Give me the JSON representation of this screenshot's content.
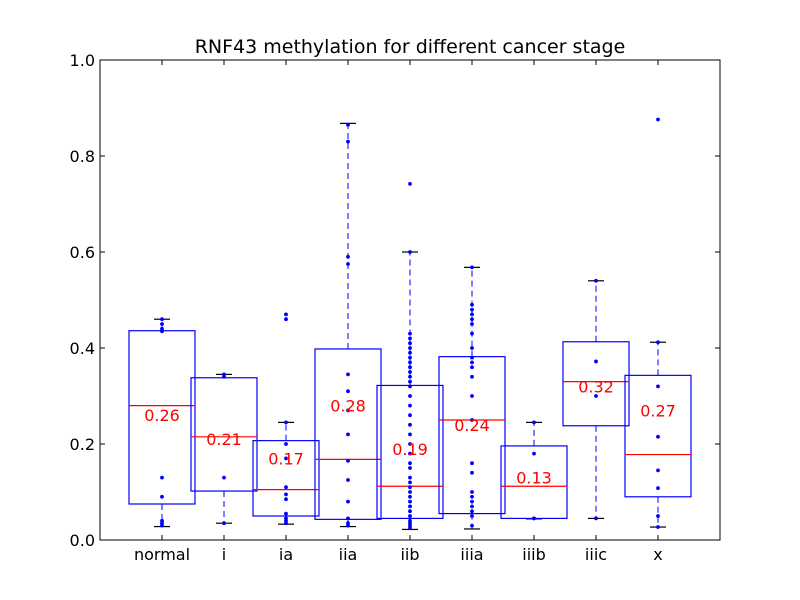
{
  "chart_data": {
    "type": "box",
    "title": "RNF43 methylation for different cancer stage",
    "xlabel": "",
    "ylabel": "",
    "ylim": [
      0,
      1.0
    ],
    "yticks": [
      "0.0",
      "0.2",
      "0.4",
      "0.6",
      "0.8",
      "1.0"
    ],
    "grid": false,
    "colors": {
      "box": "#0000ff",
      "median": "#ff0000",
      "label": "#ff0000",
      "cap": "#000000"
    },
    "categories": [
      "normal",
      "i",
      "ia",
      "iia",
      "iib",
      "iiia",
      "iiib",
      "iiic",
      "x"
    ],
    "boxes": [
      {
        "category": "normal",
        "q1": 0.075,
        "median": 0.28,
        "q3": 0.436,
        "whisker_low": 0.028,
        "whisker_high": 0.46,
        "mean_label": "0.26",
        "label_y": 0.26,
        "points": [
          0.46,
          0.45,
          0.44,
          0.435,
          0.13,
          0.09,
          0.04,
          0.035,
          0.03
        ]
      },
      {
        "category": "i",
        "q1": 0.102,
        "median": 0.215,
        "q3": 0.338,
        "whisker_low": 0.035,
        "whisker_high": 0.345,
        "mean_label": "0.21",
        "label_y": 0.21,
        "points": [
          0.345,
          0.34,
          0.13,
          0.035
        ]
      },
      {
        "category": "ia",
        "q1": 0.05,
        "median": 0.105,
        "q3": 0.207,
        "whisker_low": 0.033,
        "whisker_high": 0.245,
        "mean_label": "0.17",
        "label_y": 0.17,
        "points": [
          0.47,
          0.46,
          0.245,
          0.2,
          0.17,
          0.11,
          0.095,
          0.085,
          0.055,
          0.045,
          0.04,
          0.035
        ]
      },
      {
        "category": "iia",
        "q1": 0.043,
        "median": 0.168,
        "q3": 0.398,
        "whisker_low": 0.028,
        "whisker_high": 0.868,
        "mean_label": "0.28",
        "label_y": 0.28,
        "points": [
          0.865,
          0.83,
          0.59,
          0.575,
          0.345,
          0.31,
          0.27,
          0.22,
          0.165,
          0.125,
          0.08,
          0.045,
          0.035,
          0.03
        ]
      },
      {
        "category": "iib",
        "q1": 0.045,
        "median": 0.112,
        "q3": 0.322,
        "whisker_low": 0.022,
        "whisker_high": 0.6,
        "mean_label": "0.19",
        "label_y": 0.19,
        "points": [
          0.742,
          0.6,
          0.43,
          0.42,
          0.41,
          0.4,
          0.39,
          0.38,
          0.37,
          0.36,
          0.35,
          0.34,
          0.33,
          0.32,
          0.3,
          0.28,
          0.26,
          0.24,
          0.22,
          0.2,
          0.18,
          0.16,
          0.15,
          0.13,
          0.12,
          0.11,
          0.1,
          0.09,
          0.08,
          0.07,
          0.06,
          0.05,
          0.04,
          0.035,
          0.03,
          0.025
        ]
      },
      {
        "category": "iiia",
        "q1": 0.055,
        "median": 0.25,
        "q3": 0.382,
        "whisker_low": 0.023,
        "whisker_high": 0.568,
        "mean_label": "0.24",
        "label_y": 0.24,
        "points": [
          0.568,
          0.49,
          0.48,
          0.47,
          0.46,
          0.45,
          0.43,
          0.4,
          0.38,
          0.37,
          0.36,
          0.34,
          0.3,
          0.25,
          0.16,
          0.14,
          0.1,
          0.09,
          0.08,
          0.07,
          0.06,
          0.05,
          0.03
        ]
      },
      {
        "category": "iiib",
        "q1": 0.045,
        "median": 0.112,
        "q3": 0.196,
        "whisker_low": 0.044,
        "whisker_high": 0.245,
        "mean_label": "0.13",
        "label_y": 0.13,
        "points": [
          0.245,
          0.18,
          0.045,
          0.045
        ]
      },
      {
        "category": "iiic",
        "q1": 0.238,
        "median": 0.33,
        "q3": 0.413,
        "whisker_low": 0.045,
        "whisker_high": 0.54,
        "mean_label": "0.32",
        "label_y": 0.32,
        "points": [
          0.54,
          0.372,
          0.3,
          0.045
        ]
      },
      {
        "category": "x",
        "q1": 0.09,
        "median": 0.178,
        "q3": 0.343,
        "whisker_low": 0.027,
        "whisker_high": 0.412,
        "mean_label": "0.27",
        "label_y": 0.27,
        "points": [
          0.876,
          0.412,
          0.32,
          0.215,
          0.145,
          0.108,
          0.05,
          0.027
        ]
      }
    ]
  }
}
